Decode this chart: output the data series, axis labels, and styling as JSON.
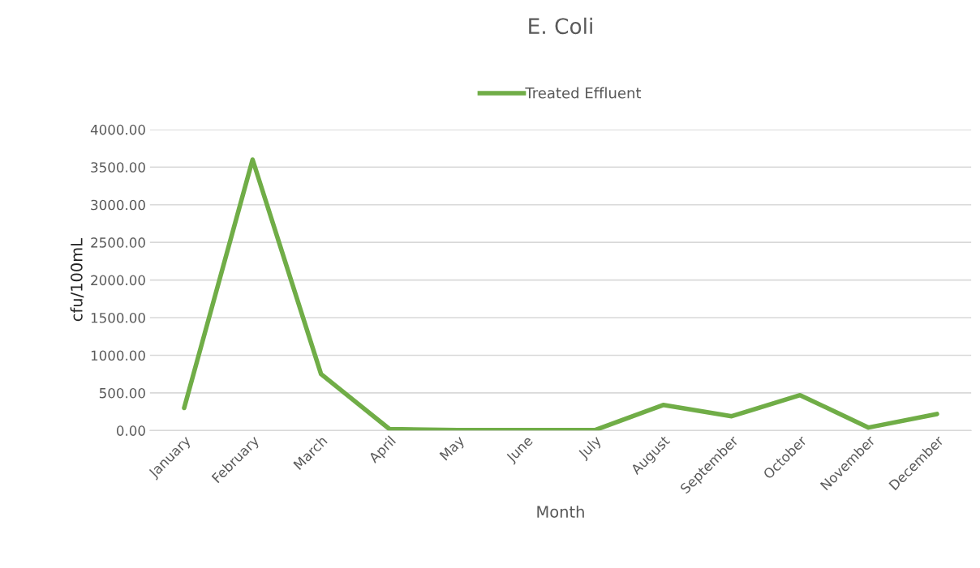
{
  "chart_data": {
    "type": "line",
    "title": "E. Coli",
    "xlabel": "Month",
    "ylabel": "cfu/100mL",
    "categories": [
      "January",
      "February",
      "March",
      "April",
      "May",
      "June",
      "July",
      "August",
      "September",
      "October",
      "November",
      "December"
    ],
    "series": [
      {
        "name": "Treated Effluent",
        "color": "#70ad47",
        "values": [
          300,
          3600,
          750,
          20,
          5,
          5,
          5,
          340,
          190,
          470,
          40,
          220
        ]
      }
    ],
    "ylim": [
      0,
      4000
    ],
    "yticks": [
      {
        "value": 0,
        "label": "0.00"
      },
      {
        "value": 500,
        "label": "500.00"
      },
      {
        "value": 1000,
        "label": "1000.00"
      },
      {
        "value": 1500,
        "label": "1500.00"
      },
      {
        "value": 2000,
        "label": "2000.00"
      },
      {
        "value": 2500,
        "label": "2500.00"
      },
      {
        "value": 3000,
        "label": "3000.00"
      },
      {
        "value": 3500,
        "label": "3500.00"
      },
      {
        "value": 4000,
        "label": "4000.00"
      }
    ],
    "grid": "y",
    "legend": "top",
    "marker": "none",
    "line_style": "solid"
  }
}
